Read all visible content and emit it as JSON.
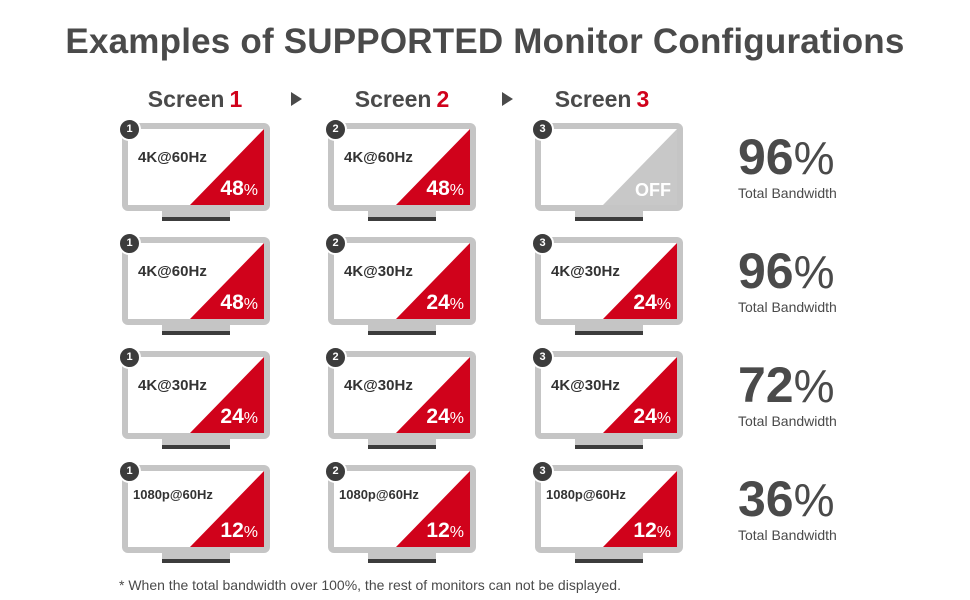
{
  "title": "Examples of SUPPORTED Monitor Configurations",
  "headers": [
    {
      "label": "Screen",
      "num": "1"
    },
    {
      "label": "Screen",
      "num": "2"
    },
    {
      "label": "Screen",
      "num": "3"
    }
  ],
  "percent_sign": "%",
  "total_label": "Total Bandwidth",
  "rows": [
    {
      "total": "96",
      "monitors": [
        {
          "badge": "1",
          "res": "4K@60Hz",
          "pct": "48",
          "off": false
        },
        {
          "badge": "2",
          "res": "4K@60Hz",
          "pct": "48",
          "off": false
        },
        {
          "badge": "3",
          "res": "",
          "pct": "OFF",
          "off": true
        }
      ]
    },
    {
      "total": "96",
      "monitors": [
        {
          "badge": "1",
          "res": "4K@60Hz",
          "pct": "48",
          "off": false
        },
        {
          "badge": "2",
          "res": "4K@30Hz",
          "pct": "24",
          "off": false
        },
        {
          "badge": "3",
          "res": "4K@30Hz",
          "pct": "24",
          "off": false
        }
      ]
    },
    {
      "total": "72",
      "monitors": [
        {
          "badge": "1",
          "res": "4K@30Hz",
          "pct": "24",
          "off": false
        },
        {
          "badge": "2",
          "res": "4K@30Hz",
          "pct": "24",
          "off": false
        },
        {
          "badge": "3",
          "res": "4K@30Hz",
          "pct": "24",
          "off": false
        }
      ]
    },
    {
      "total": "36",
      "monitors": [
        {
          "badge": "1",
          "res": "1080p@60Hz",
          "pct": "12",
          "off": false
        },
        {
          "badge": "2",
          "res": "1080p@60Hz",
          "pct": "12",
          "off": false
        },
        {
          "badge": "3",
          "res": "1080p@60Hz",
          "pct": "12",
          "off": false
        }
      ]
    }
  ],
  "footnote": "* When the total bandwidth over 100%, the rest of monitors can not be displayed.",
  "colors": {
    "accent": "#d0021b",
    "off": "#c8c8c8",
    "text": "#4a4a4a",
    "bezel": "#c5c5c5"
  }
}
